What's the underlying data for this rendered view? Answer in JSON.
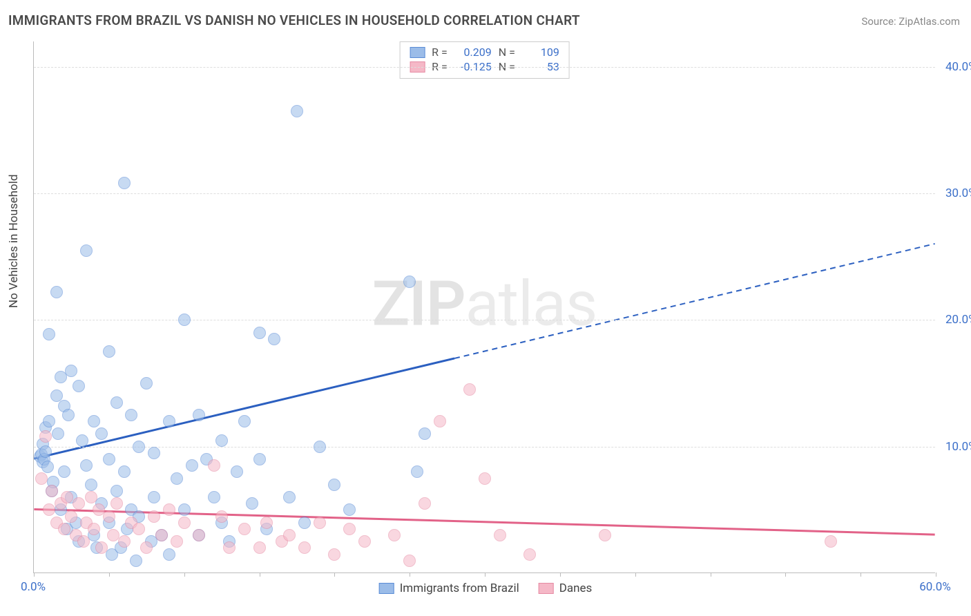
{
  "title": "IMMIGRANTS FROM BRAZIL VS DANISH NO VEHICLES IN HOUSEHOLD CORRELATION CHART",
  "source": "Source: ZipAtlas.com",
  "watermark_a": "ZIP",
  "watermark_b": "atlas",
  "chart": {
    "type": "scatter",
    "xlim": [
      0,
      60
    ],
    "ylim": [
      0,
      42
    ],
    "ylabel": "No Vehicles in Household",
    "x_tick_positions": [
      0,
      5,
      10,
      15,
      20,
      25,
      30,
      35,
      40,
      45,
      50,
      55,
      60
    ],
    "x_tick_labels": {
      "0": "0.0%",
      "60": "60.0%"
    },
    "y_gridlines": [
      10,
      20,
      30,
      40
    ],
    "y_tick_labels": {
      "10": "10.0%",
      "20": "20.0%",
      "30": "30.0%",
      "40": "40.0%"
    },
    "grid_color": "#dddddd",
    "axis_color": "#bbbbbb",
    "background_color": "#ffffff",
    "tick_label_color": "#3b6fc9",
    "marker_radius": 9,
    "marker_opacity": 0.55,
    "marker_stroke_width": 1.2,
    "series": [
      {
        "key": "brazil",
        "label": "Immigrants from Brazil",
        "fill": "#9bbce8",
        "stroke": "#5a8cd6",
        "trend_color": "#2b5fc0",
        "R": "0.209",
        "N": "109",
        "trend": {
          "x1": 0,
          "y1": 9.0,
          "x2": 60,
          "y2": 26.0,
          "solid_until_x": 28
        },
        "points": [
          [
            0.4,
            9.2
          ],
          [
            0.5,
            9.4
          ],
          [
            0.6,
            8.8
          ],
          [
            0.6,
            10.2
          ],
          [
            0.7,
            9.0
          ],
          [
            0.8,
            9.6
          ],
          [
            0.8,
            11.5
          ],
          [
            0.9,
            8.4
          ],
          [
            1.0,
            12.0
          ],
          [
            1.0,
            18.9
          ],
          [
            1.2,
            6.5
          ],
          [
            1.3,
            7.2
          ],
          [
            1.5,
            22.2
          ],
          [
            1.5,
            14.0
          ],
          [
            1.6,
            11.0
          ],
          [
            1.8,
            5.0
          ],
          [
            1.8,
            15.5
          ],
          [
            2.0,
            13.2
          ],
          [
            2.0,
            8.0
          ],
          [
            2.2,
            3.5
          ],
          [
            2.3,
            12.5
          ],
          [
            2.5,
            16.0
          ],
          [
            2.5,
            6.0
          ],
          [
            2.8,
            4.0
          ],
          [
            3.0,
            14.8
          ],
          [
            3.0,
            2.5
          ],
          [
            3.2,
            10.5
          ],
          [
            3.5,
            25.5
          ],
          [
            3.5,
            8.5
          ],
          [
            3.8,
            7.0
          ],
          [
            4.0,
            12.0
          ],
          [
            4.0,
            3.0
          ],
          [
            4.2,
            2.0
          ],
          [
            4.5,
            5.5
          ],
          [
            4.5,
            11.0
          ],
          [
            5.0,
            17.5
          ],
          [
            5.0,
            9.0
          ],
          [
            5.0,
            4.0
          ],
          [
            5.2,
            1.5
          ],
          [
            5.5,
            13.5
          ],
          [
            5.5,
            6.5
          ],
          [
            5.8,
            2.0
          ],
          [
            6.0,
            30.8
          ],
          [
            6.0,
            8.0
          ],
          [
            6.2,
            3.5
          ],
          [
            6.5,
            12.5
          ],
          [
            6.5,
            5.0
          ],
          [
            6.8,
            1.0
          ],
          [
            7.0,
            10.0
          ],
          [
            7.0,
            4.5
          ],
          [
            7.5,
            15.0
          ],
          [
            7.8,
            2.5
          ],
          [
            8.0,
            9.5
          ],
          [
            8.0,
            6.0
          ],
          [
            8.5,
            3.0
          ],
          [
            9.0,
            12.0
          ],
          [
            9.0,
            1.5
          ],
          [
            9.5,
            7.5
          ],
          [
            10.0,
            20.0
          ],
          [
            10.0,
            5.0
          ],
          [
            10.5,
            8.5
          ],
          [
            11.0,
            12.5
          ],
          [
            11.0,
            3.0
          ],
          [
            11.5,
            9.0
          ],
          [
            12.0,
            6.0
          ],
          [
            12.5,
            10.5
          ],
          [
            12.5,
            4.0
          ],
          [
            13.0,
            2.5
          ],
          [
            13.5,
            8.0
          ],
          [
            14.0,
            12.0
          ],
          [
            14.5,
            5.5
          ],
          [
            15.0,
            19.0
          ],
          [
            15.0,
            9.0
          ],
          [
            15.5,
            3.5
          ],
          [
            16.0,
            18.5
          ],
          [
            17.0,
            6.0
          ],
          [
            17.5,
            36.5
          ],
          [
            18.0,
            4.0
          ],
          [
            19.0,
            10.0
          ],
          [
            20.0,
            7.0
          ],
          [
            21.0,
            5.0
          ],
          [
            25.0,
            23.0
          ],
          [
            25.5,
            8.0
          ],
          [
            26.0,
            11.0
          ]
        ]
      },
      {
        "key": "danes",
        "label": "Danes",
        "fill": "#f5b8c7",
        "stroke": "#e68aa3",
        "trend_color": "#e26288",
        "R": "-0.125",
        "N": "53",
        "trend": {
          "x1": 0,
          "y1": 5.0,
          "x2": 60,
          "y2": 3.0,
          "solid_until_x": 60
        },
        "points": [
          [
            0.5,
            7.5
          ],
          [
            0.8,
            10.8
          ],
          [
            1.0,
            5.0
          ],
          [
            1.2,
            6.5
          ],
          [
            1.5,
            4.0
          ],
          [
            1.8,
            5.5
          ],
          [
            2.0,
            3.5
          ],
          [
            2.2,
            6.0
          ],
          [
            2.5,
            4.5
          ],
          [
            2.8,
            3.0
          ],
          [
            3.0,
            5.5
          ],
          [
            3.3,
            2.5
          ],
          [
            3.5,
            4.0
          ],
          [
            3.8,
            6.0
          ],
          [
            4.0,
            3.5
          ],
          [
            4.3,
            5.0
          ],
          [
            4.5,
            2.0
          ],
          [
            5.0,
            4.5
          ],
          [
            5.3,
            3.0
          ],
          [
            5.5,
            5.5
          ],
          [
            6.0,
            2.5
          ],
          [
            6.5,
            4.0
          ],
          [
            7.0,
            3.5
          ],
          [
            7.5,
            2.0
          ],
          [
            8.0,
            4.5
          ],
          [
            8.5,
            3.0
          ],
          [
            9.0,
            5.0
          ],
          [
            9.5,
            2.5
          ],
          [
            10.0,
            4.0
          ],
          [
            11.0,
            3.0
          ],
          [
            12.0,
            8.5
          ],
          [
            12.5,
            4.5
          ],
          [
            13.0,
            2.0
          ],
          [
            14.0,
            3.5
          ],
          [
            15.0,
            2.0
          ],
          [
            15.5,
            4.0
          ],
          [
            16.5,
            2.5
          ],
          [
            17.0,
            3.0
          ],
          [
            18.0,
            2.0
          ],
          [
            19.0,
            4.0
          ],
          [
            20.0,
            1.5
          ],
          [
            21.0,
            3.5
          ],
          [
            22.0,
            2.5
          ],
          [
            24.0,
            3.0
          ],
          [
            25.0,
            1.0
          ],
          [
            26.0,
            5.5
          ],
          [
            27.0,
            12.0
          ],
          [
            29.0,
            14.5
          ],
          [
            30.0,
            7.5
          ],
          [
            31.0,
            3.0
          ],
          [
            33.0,
            1.5
          ],
          [
            38.0,
            3.0
          ],
          [
            53.0,
            2.5
          ]
        ]
      }
    ]
  },
  "legend_bottom": {
    "items": [
      {
        "swatch_fill": "#9bbce8",
        "swatch_stroke": "#5a8cd6",
        "label": "Immigrants from Brazil"
      },
      {
        "swatch_fill": "#f5b8c7",
        "swatch_stroke": "#e68aa3",
        "label": "Danes"
      }
    ]
  }
}
